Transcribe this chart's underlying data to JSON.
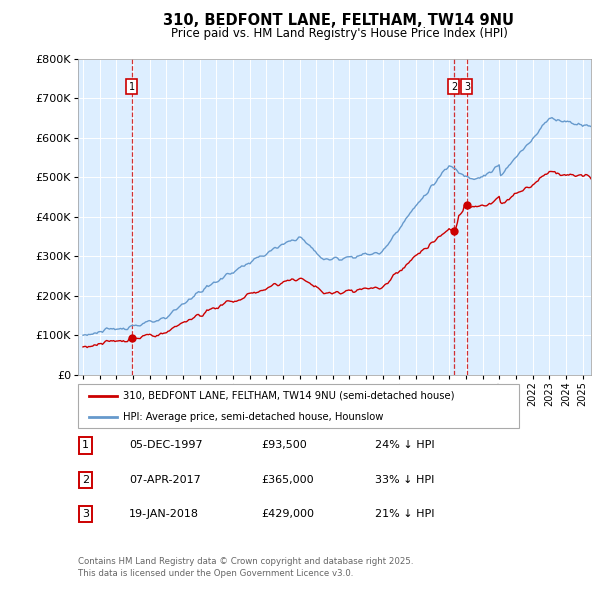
{
  "title": "310, BEDFONT LANE, FELTHAM, TW14 9NU",
  "subtitle": "Price paid vs. HM Land Registry's House Price Index (HPI)",
  "ylim": [
    0,
    800000
  ],
  "yticks": [
    0,
    100000,
    200000,
    300000,
    400000,
    500000,
    600000,
    700000,
    800000
  ],
  "ytick_labels": [
    "£0",
    "£100K",
    "£200K",
    "£300K",
    "£400K",
    "£500K",
    "£600K",
    "£700K",
    "£800K"
  ],
  "xlim_start": 1994.7,
  "xlim_end": 2025.5,
  "sale1_date": 1997.92,
  "sale1_price": 93500,
  "sale1_label": "05-DEC-1997",
  "sale1_text": "£93,500",
  "sale1_pct": "24% ↓ HPI",
  "sale2_date": 2017.27,
  "sale2_price": 365000,
  "sale2_label": "07-APR-2017",
  "sale2_text": "£365,000",
  "sale2_pct": "33% ↓ HPI",
  "sale3_date": 2018.05,
  "sale3_price": 429000,
  "sale3_label": "19-JAN-2018",
  "sale3_text": "£429,000",
  "sale3_pct": "21% ↓ HPI",
  "line_color_paid": "#cc0000",
  "line_color_hpi": "#6699cc",
  "bg_color": "#ddeeff",
  "legend_label_paid": "310, BEDFONT LANE, FELTHAM, TW14 9NU (semi-detached house)",
  "legend_label_hpi": "HPI: Average price, semi-detached house, Hounslow",
  "footer1": "Contains HM Land Registry data © Crown copyright and database right 2025.",
  "footer2": "This data is licensed under the Open Government Licence v3.0."
}
